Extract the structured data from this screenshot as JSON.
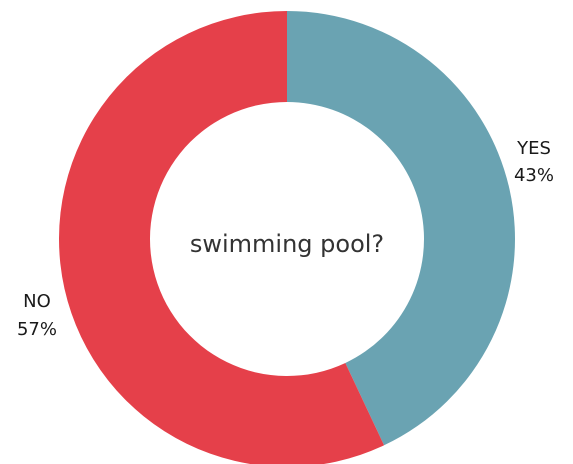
{
  "chart_data": {
    "type": "pie",
    "style": "donut",
    "center_text": "swimming pool?",
    "slices": [
      {
        "label": "YES",
        "value": 43,
        "value_label": "43%",
        "color": "#6aa3b2"
      },
      {
        "label": "NO",
        "value": 57,
        "value_label": "57%",
        "color": "#e5404a"
      }
    ],
    "start_angle": "top",
    "direction": "clockwise",
    "legend": "none"
  }
}
